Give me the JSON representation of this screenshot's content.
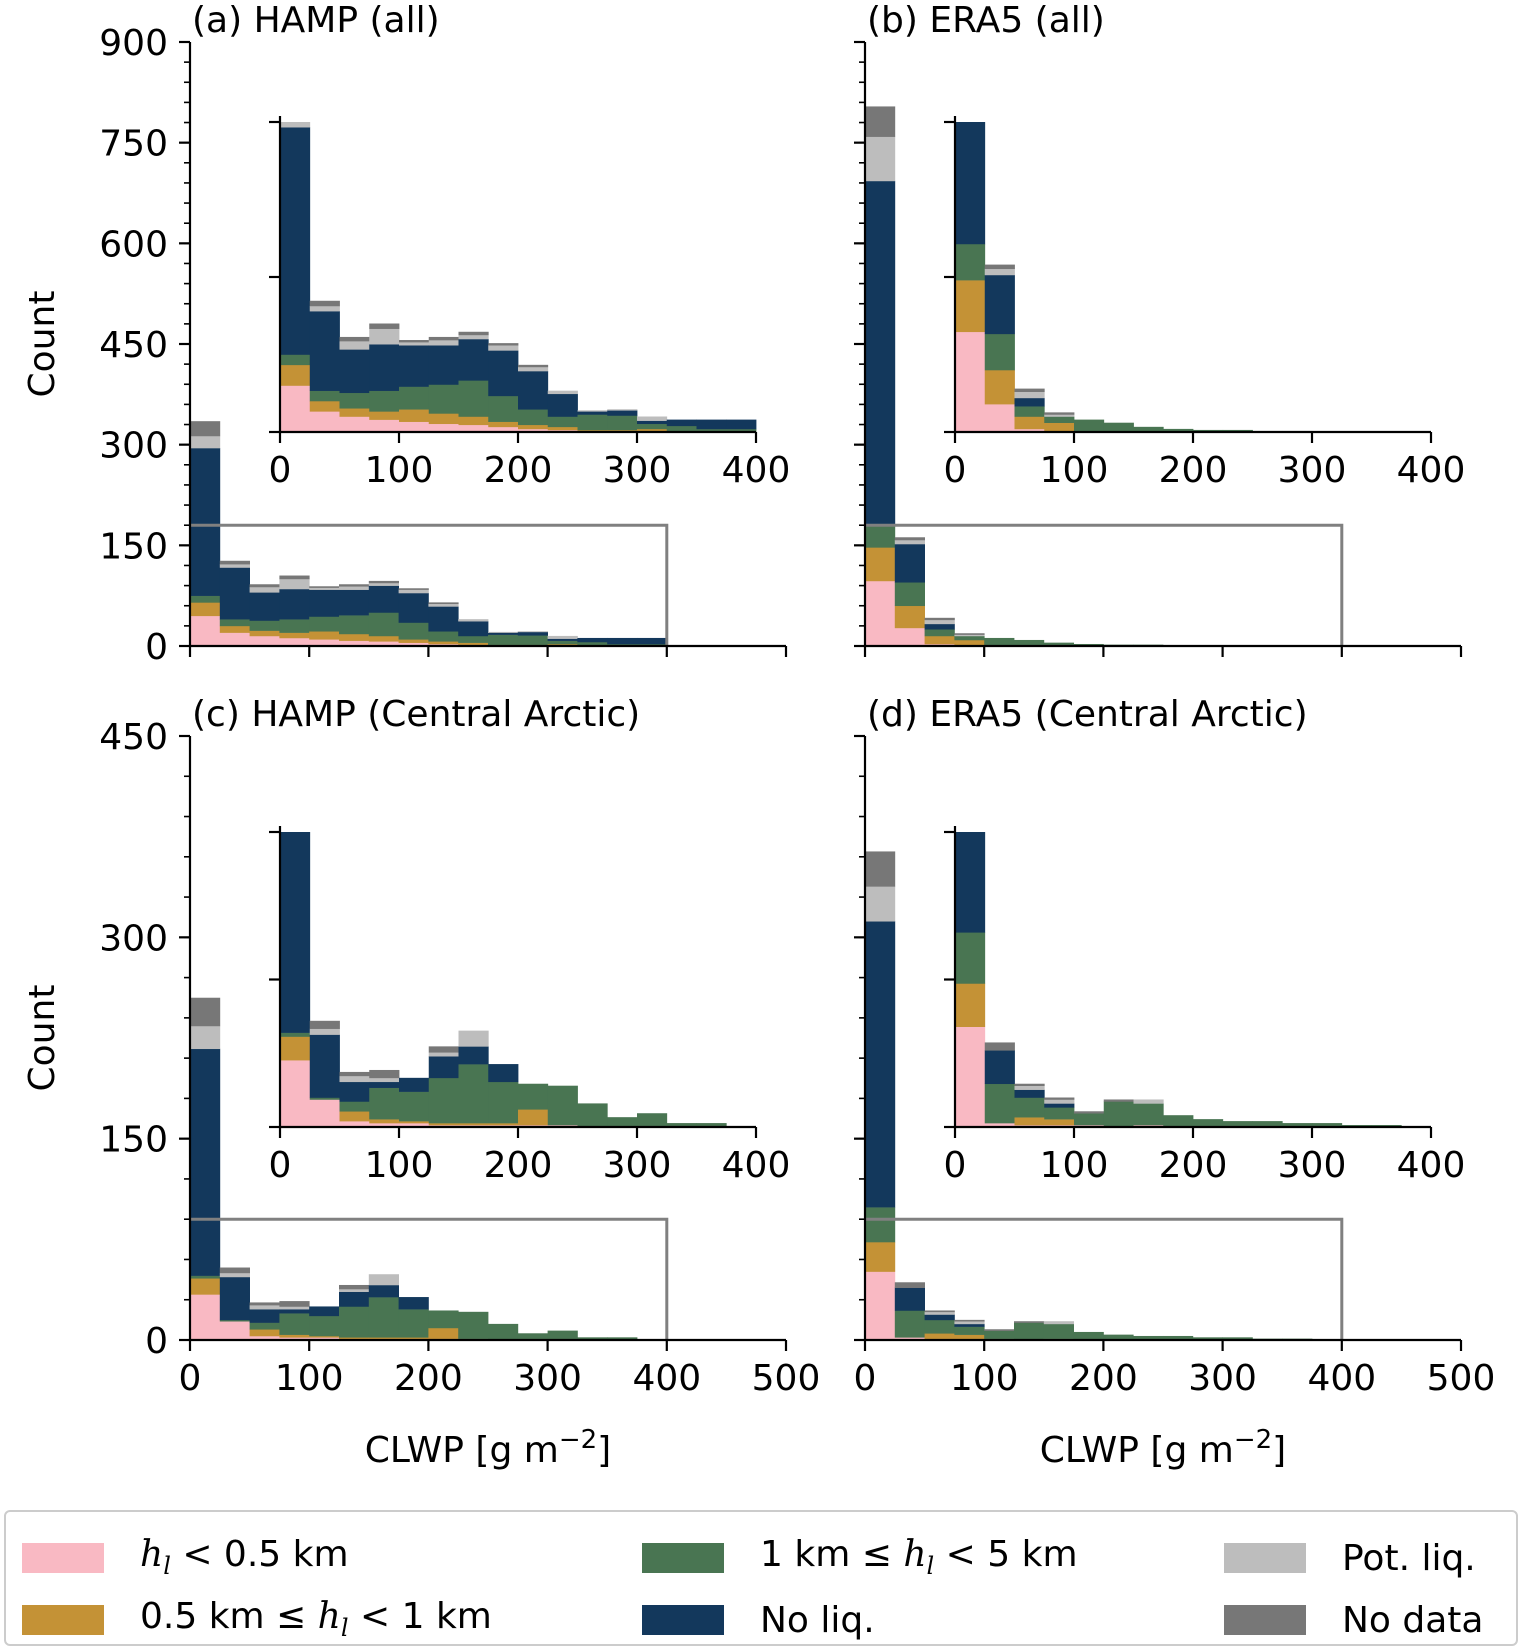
{
  "colors": {
    "low": "#f9b9c3",
    "mid": "#c49236",
    "high": "#497552",
    "noliq": "#13385c",
    "potliq": "#bdbdbd",
    "nodata": "#777777",
    "frame": "#808080"
  },
  "common": {
    "ylabel": "Count",
    "xlabel_prefix": "CLWP [g m",
    "xlabel_exp": "−2",
    "xlabel_suffix": "]"
  },
  "legend": {
    "low": {
      "pre": "",
      "var": "h",
      "sub": "l",
      "post": " < 0.5 km"
    },
    "mid": {
      "pre": "0.5 km  ≤  ",
      "var": "h",
      "sub": "l",
      "post": " < 1 km"
    },
    "high": {
      "pre": "1 km  ≤  ",
      "var": "h",
      "sub": "l",
      "post": " < 5 km"
    },
    "noliq": {
      "text": "No liq."
    },
    "potliq": {
      "text": "Pot. liq."
    },
    "nodata": {
      "text": "No data"
    }
  },
  "chart_data": [
    {
      "type": "bar",
      "stacked": true,
      "title": "(a) HAMP (all)",
      "xlabel": "CLWP [g m−2]",
      "ylabel": "Count",
      "xlim": [
        0,
        500
      ],
      "ylim": [
        0,
        900
      ],
      "xticks": [
        0,
        100,
        200,
        300,
        400,
        500
      ],
      "yticks": [
        0,
        150,
        300,
        450,
        600,
        750,
        900
      ],
      "bin_width": 25,
      "bins": [
        0,
        25,
        50,
        75,
        100,
        125,
        150,
        175,
        200,
        225,
        250,
        275,
        300,
        325,
        350,
        375
      ],
      "series": [
        {
          "name": "hl < 0.5 km",
          "key": "low",
          "values": [
            45,
            20,
            15,
            12,
            10,
            8,
            7,
            5,
            3,
            2,
            1,
            1,
            1,
            0,
            0,
            0
          ]
        },
        {
          "name": "0.5 km ≤ hl < 1 km",
          "key": "mid",
          "values": [
            20,
            10,
            8,
            8,
            12,
            10,
            8,
            5,
            4,
            3,
            1,
            1,
            2,
            1,
            0,
            0
          ]
        },
        {
          "name": "1 km ≤ hl < 5 km",
          "key": "high",
          "values": [
            10,
            10,
            15,
            20,
            22,
            28,
            35,
            25,
            15,
            10,
            15,
            14,
            5,
            5,
            3,
            3
          ]
        },
        {
          "name": "No liq.",
          "key": "noliq",
          "values": [
            220,
            77,
            42,
            45,
            40,
            38,
            40,
            44,
            37,
            22,
            3,
            5,
            3,
            6,
            9,
            9
          ]
        },
        {
          "name": "Pot. liq.",
          "key": "potliq",
          "values": [
            18,
            5,
            8,
            15,
            3,
            5,
            4,
            5,
            4,
            3,
            1,
            1,
            4,
            0,
            0,
            0
          ]
        },
        {
          "name": "No data",
          "key": "nodata",
          "values": [
            22,
            5,
            4,
            5,
            2,
            3,
            3,
            2,
            2,
            0,
            0,
            0,
            0,
            0,
            0,
            0
          ]
        }
      ],
      "inset": {
        "xlim": [
          0,
          400
        ],
        "ylim": [
          0,
          300
        ],
        "xticks": [
          0,
          100,
          200,
          300,
          400
        ],
        "zoom_box": [
          0,
          400,
          0,
          180
        ]
      }
    },
    {
      "type": "bar",
      "stacked": true,
      "title": "(b) ERA5 (all)",
      "xlabel": "CLWP [g m−2]",
      "ylabel": "",
      "xlim": [
        0,
        500
      ],
      "ylim": [
        0,
        900
      ],
      "xticks": [
        0,
        100,
        200,
        300,
        400,
        500
      ],
      "yticks": [
        0,
        150,
        300,
        450,
        600,
        750,
        900
      ],
      "bin_width": 25,
      "bins": [
        0,
        25,
        50,
        75,
        100,
        125,
        150,
        175,
        200,
        225,
        250,
        275,
        300,
        325,
        350,
        375
      ],
      "series": [
        {
          "name": "hl < 0.5 km",
          "key": "low",
          "values": [
            97,
            27,
            3,
            1,
            1,
            0,
            0,
            0,
            0,
            0,
            0,
            0,
            0,
            0,
            0,
            0
          ]
        },
        {
          "name": "0.5 km ≤ hl < 1 km",
          "key": "mid",
          "values": [
            50,
            33,
            12,
            8,
            0,
            0,
            0,
            0,
            0,
            0,
            0,
            0,
            0,
            0,
            0,
            0
          ]
        },
        {
          "name": "1 km ≤ hl < 5 km",
          "key": "high",
          "values": [
            35,
            35,
            10,
            6,
            11,
            9,
            5,
            3,
            2,
            2,
            1,
            1,
            0,
            0,
            0,
            0
          ]
        },
        {
          "name": "No liq.",
          "key": "noliq",
          "values": [
            511,
            57,
            8,
            0,
            0,
            0,
            0,
            0,
            0,
            0,
            0,
            0,
            0,
            0,
            0,
            0
          ]
        },
        {
          "name": "Pot. liq.",
          "key": "potliq",
          "values": [
            66,
            6,
            6,
            2,
            0,
            0,
            0,
            0,
            0,
            0,
            0,
            0,
            0,
            0,
            0,
            0
          ]
        },
        {
          "name": "No data",
          "key": "nodata",
          "values": [
            45,
            4,
            3,
            2,
            0,
            0,
            0,
            0,
            0,
            0,
            0,
            0,
            0,
            0,
            0,
            0
          ]
        }
      ],
      "inset": {
        "xlim": [
          0,
          400
        ],
        "ylim": [
          0,
          300
        ],
        "xticks": [
          0,
          100,
          200,
          300,
          400
        ],
        "zoom_box": [
          0,
          400,
          0,
          180
        ]
      }
    },
    {
      "type": "bar",
      "stacked": true,
      "title": "(c) HAMP (Central Arctic)",
      "xlabel": "CLWP [g m−2]",
      "ylabel": "Count",
      "xlim": [
        0,
        500
      ],
      "ylim": [
        0,
        450
      ],
      "xticks": [
        0,
        100,
        200,
        300,
        400,
        500
      ],
      "yticks": [
        0,
        150,
        300,
        450
      ],
      "bin_width": 25,
      "bins": [
        0,
        25,
        50,
        75,
        100,
        125,
        150,
        175,
        200,
        225,
        250,
        275,
        300,
        325,
        350,
        375
      ],
      "series": [
        {
          "name": "hl < 0.5 km",
          "key": "low",
          "values": [
            34,
            14,
            3,
            2,
            2,
            1,
            1,
            1,
            1,
            1,
            0,
            0,
            0,
            0,
            0,
            0
          ]
        },
        {
          "name": "0.5 km ≤ hl < 1 km",
          "key": "mid",
          "values": [
            12,
            0,
            5,
            2,
            1,
            1,
            1,
            1,
            8,
            0,
            0,
            0,
            0,
            0,
            0,
            0
          ]
        },
        {
          "name": "1 km ≤ hl < 5 km",
          "key": "high",
          "values": [
            2,
            1,
            5,
            16,
            15,
            23,
            30,
            21,
            13,
            20,
            12,
            5,
            7,
            2,
            2,
            0
          ]
        },
        {
          "name": "No liq.",
          "key": "noliq",
          "values": [
            169,
            32,
            10,
            3,
            7,
            11,
            9,
            9,
            0,
            0,
            0,
            0,
            0,
            0,
            0,
            0
          ]
        },
        {
          "name": "Pot. liq.",
          "key": "potliq",
          "values": [
            17,
            3,
            3,
            2,
            0,
            2,
            8,
            0,
            0,
            0,
            0,
            0,
            0,
            0,
            0,
            0
          ]
        },
        {
          "name": "No data",
          "key": "nodata",
          "values": [
            21,
            4,
            2,
            4,
            0,
            3,
            0,
            0,
            0,
            0,
            0,
            0,
            0,
            0,
            0,
            0
          ]
        }
      ],
      "inset": {
        "xlim": [
          0,
          400
        ],
        "ylim": [
          0,
          150
        ],
        "xticks": [
          0,
          100,
          200,
          300,
          400
        ],
        "zoom_box": [
          0,
          400,
          0,
          90
        ]
      }
    },
    {
      "type": "bar",
      "stacked": true,
      "title": "(d) ERA5 (Central Arctic)",
      "xlabel": "CLWP [g m−2]",
      "ylabel": "",
      "xlim": [
        0,
        500
      ],
      "ylim": [
        0,
        450
      ],
      "xticks": [
        0,
        100,
        200,
        300,
        400,
        500
      ],
      "yticks": [
        0,
        150,
        300,
        450
      ],
      "bin_width": 25,
      "bins": [
        0,
        25,
        50,
        75,
        100,
        125,
        150,
        175,
        200,
        225,
        250,
        275,
        300,
        325,
        350,
        375
      ],
      "series": [
        {
          "name": "hl < 0.5 km",
          "key": "low",
          "values": [
            51,
            2,
            1,
            1,
            1,
            0,
            1,
            0,
            0,
            0,
            0,
            0,
            0,
            0,
            0,
            0
          ]
        },
        {
          "name": "0.5 km ≤ hl < 1 km",
          "key": "mid",
          "values": [
            22,
            0,
            4,
            3,
            0,
            0,
            0,
            0,
            0,
            0,
            0,
            0,
            0,
            0,
            0,
            0
          ]
        },
        {
          "name": "1 km ≤ hl < 5 km",
          "key": "high",
          "values": [
            26,
            20,
            10,
            6,
            6,
            13,
            11,
            6,
            4,
            3,
            3,
            2,
            2,
            1,
            1,
            0
          ]
        },
        {
          "name": "No liq.",
          "key": "noliq",
          "values": [
            213,
            17,
            4,
            2,
            0,
            0,
            0,
            0,
            0,
            0,
            0,
            0,
            0,
            0,
            0,
            0
          ]
        },
        {
          "name": "Pot. liq.",
          "key": "potliq",
          "values": [
            26,
            0,
            2,
            2,
            0,
            0,
            2,
            0,
            0,
            0,
            0,
            0,
            0,
            0,
            0,
            0
          ]
        },
        {
          "name": "No data",
          "key": "nodata",
          "values": [
            26,
            4,
            1,
            1,
            1,
            1,
            0,
            0,
            0,
            0,
            0,
            0,
            0,
            0,
            0,
            0
          ]
        }
      ],
      "inset": {
        "xlim": [
          0,
          400
        ],
        "ylim": [
          0,
          150
        ],
        "xticks": [
          0,
          100,
          200,
          300,
          400
        ],
        "zoom_box": [
          0,
          400,
          0,
          90
        ]
      }
    }
  ]
}
